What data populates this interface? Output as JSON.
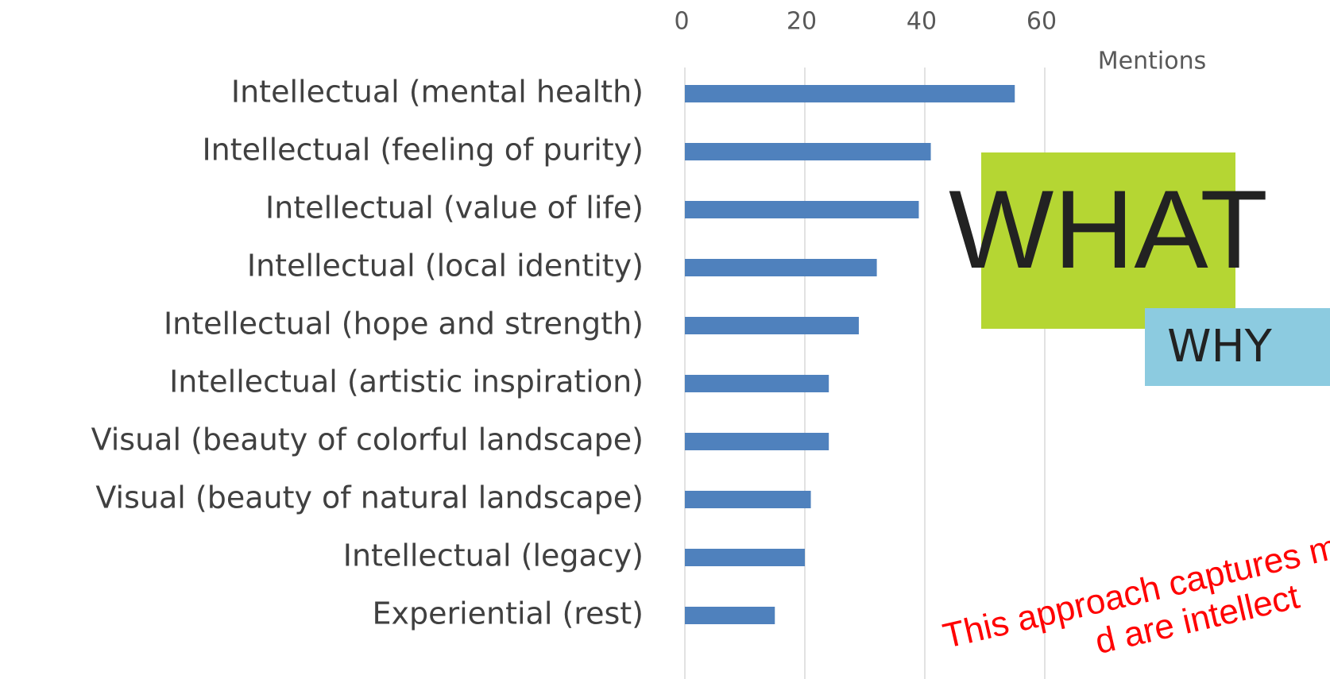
{
  "chart_data": {
    "type": "bar",
    "orientation": "horizontal",
    "categories": [
      "Intellectual (mental health)",
      "Intellectual (feeling of purity)",
      "Intellectual (value of life)",
      "Intellectual (local identity)",
      "Intellectual (hope and strength)",
      "Intellectual (artistic inspiration)",
      "Visual (beauty of colorful landscape)",
      "Visual (beauty of natural landscape)",
      "Intellectual (legacy)",
      "Experiential (rest)"
    ],
    "values": [
      55,
      41,
      39,
      32,
      29,
      24,
      24,
      21,
      20,
      15
    ],
    "color": "#4f81bd",
    "xlabel": "Mentions",
    "xlim": [
      0,
      70
    ],
    "xticks": [
      0,
      20,
      40,
      60
    ],
    "grid": true,
    "annotations": [
      "This approach captures many",
      "d are intellect"
    ],
    "images": [
      "WHAT",
      "WHY"
    ]
  }
}
